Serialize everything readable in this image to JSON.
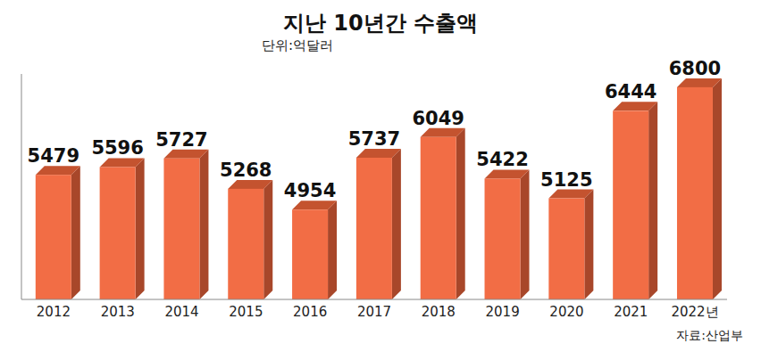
{
  "chart_data": {
    "type": "bar",
    "title": "지난 10년간 수출액",
    "subtitle": "단위:억달러",
    "source": "자료:산업부",
    "categories": [
      "2012",
      "2013",
      "2014",
      "2015",
      "2016",
      "2017",
      "2018",
      "2019",
      "2020",
      "2021",
      "2022년"
    ],
    "values": [
      5479,
      5596,
      5727,
      5268,
      4954,
      5737,
      6049,
      5422,
      5125,
      6444,
      6800
    ],
    "color": "#f26d45",
    "ylim": [
      3600,
      7000
    ],
    "yticks": [],
    "grid": false,
    "data_labels": true,
    "tick_labels": "x"
  }
}
